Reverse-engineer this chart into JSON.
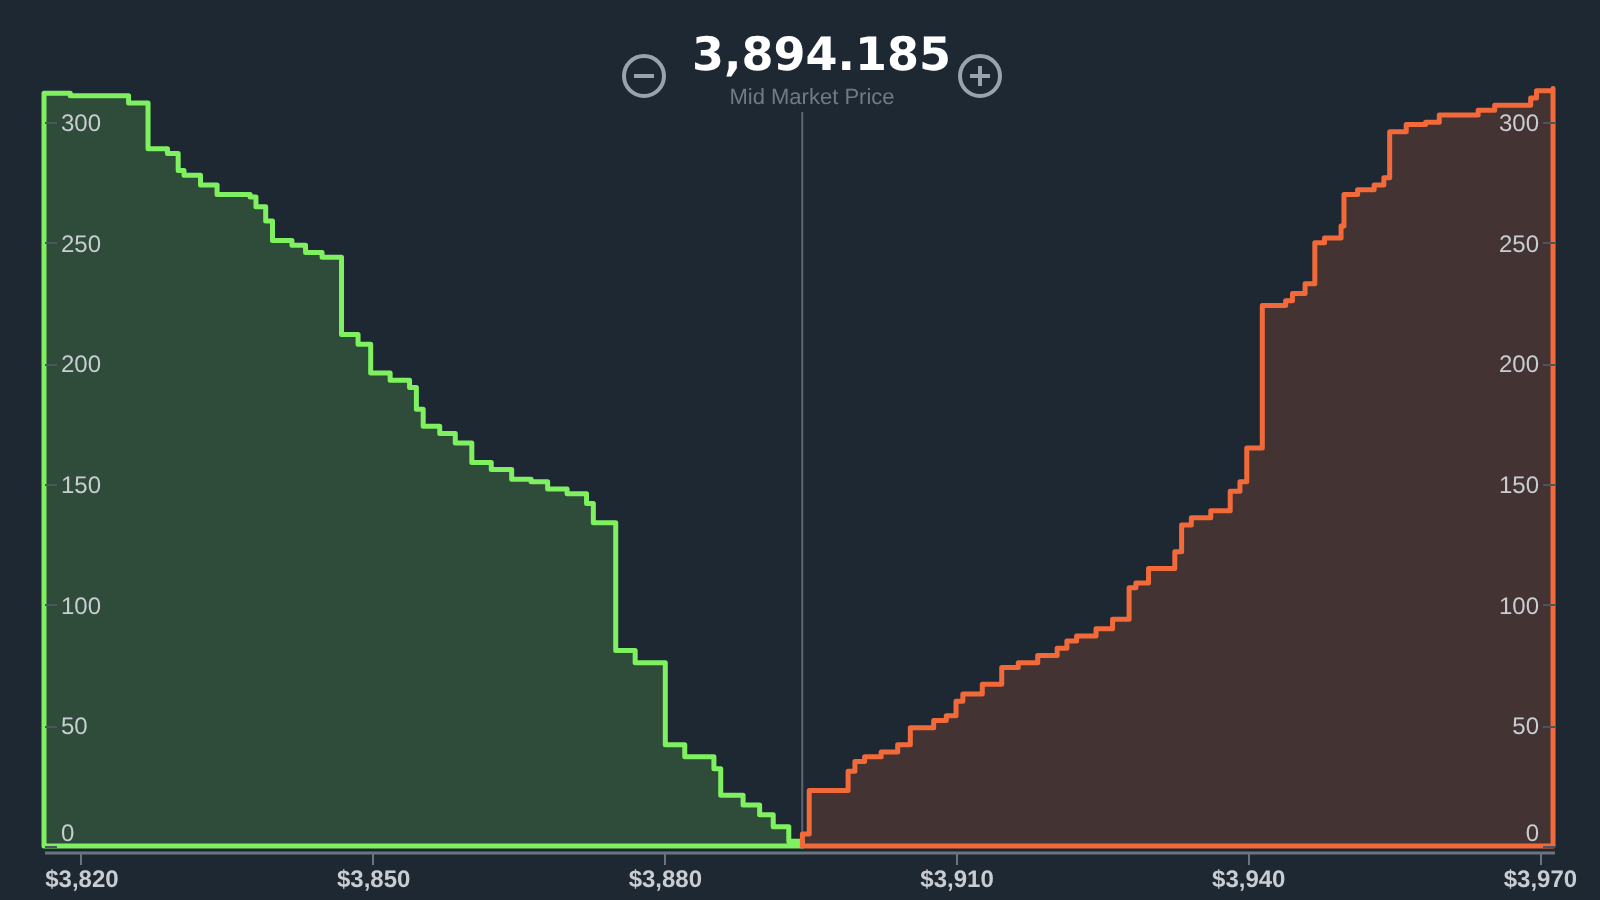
{
  "chart_data": {
    "type": "area",
    "title": "3,894.185",
    "subtitle": "Mid Market Price",
    "xlim": [
      3816.2,
      3971.5
    ],
    "xticks": [
      {
        "value": 3820,
        "label": "$3,820"
      },
      {
        "value": 3850,
        "label": "$3,850"
      },
      {
        "value": 3880,
        "label": "$3,880"
      },
      {
        "value": 3910,
        "label": "$3,910"
      },
      {
        "value": 3940,
        "label": "$3,940"
      },
      {
        "value": 3970,
        "label": "$3,970"
      }
    ],
    "ylim": [
      0,
      315
    ],
    "yticks": [
      0,
      50,
      100,
      150,
      200,
      250,
      300
    ],
    "y2lim": [
      0,
      315
    ],
    "y2ticks": [
      0,
      50,
      100,
      150,
      200,
      250,
      300
    ],
    "grid": false,
    "ref_lines": [
      {
        "axis": "x",
        "value": 3894.185,
        "color": "#5b6670"
      }
    ],
    "series": [
      {
        "color": "#7ff160",
        "x": [
          3816.2,
          3818.9,
          3824.9,
          3826.9,
          3828.9,
          3830.0,
          3830.6,
          3832.3,
          3834.0,
          3837.4,
          3838.0,
          3839.0,
          3839.7,
          3841.7,
          3843.1,
          3844.8,
          3846.8,
          3848.5,
          3849.8,
          3851.8,
          3853.8,
          3854.5,
          3855.2,
          3856.9,
          3858.5,
          3860.2,
          3862.2,
          3864.3,
          3866.3,
          3868.0,
          3870.0,
          3872.0,
          3872.7,
          3875.0,
          3877.0,
          3880.1,
          3882.1,
          3885.1,
          3885.8,
          3888.1,
          3889.8,
          3891.2,
          3892.8,
          3894.2
        ],
        "values": [
          312,
          311,
          308,
          289,
          287,
          280,
          278,
          274,
          270,
          269,
          265,
          259,
          251,
          249,
          246,
          244,
          212,
          208,
          196,
          193,
          190,
          181,
          174,
          171,
          167,
          159,
          156,
          152,
          151,
          148,
          146,
          142,
          134,
          81,
          76,
          42,
          37,
          32,
          21,
          17,
          13,
          8,
          2,
          0
        ]
      },
      {
        "color": "#f26a3a",
        "x": [
          3894.2,
          3894.9,
          3898.9,
          3899.6,
          3900.6,
          3902.3,
          3904.0,
          3905.3,
          3907.7,
          3909.0,
          3910.0,
          3910.7,
          3912.7,
          3914.7,
          3916.4,
          3918.4,
          3920.4,
          3921.4,
          3922.4,
          3924.4,
          3926.1,
          3927.8,
          3928.5,
          3929.8,
          3932.5,
          3933.2,
          3934.2,
          3936.2,
          3938.2,
          3939.2,
          3939.9,
          3941.5,
          3943.9,
          3944.6,
          3945.9,
          3946.9,
          3947.9,
          3949.6,
          3949.9,
          3951.3,
          3953.0,
          3954.0,
          3954.6,
          3956.3,
          3958.3,
          3959.7,
          3963.7,
          3965.4,
          3969.1,
          3969.7,
          3971.4
        ],
        "values": [
          5,
          23,
          31,
          35,
          37,
          39,
          42,
          49,
          52,
          54,
          60,
          63,
          67,
          74,
          76,
          79,
          82,
          85,
          87,
          90,
          94,
          107,
          109,
          115,
          122,
          133,
          136,
          139,
          147,
          151,
          165,
          224,
          226,
          229,
          233,
          250,
          252,
          257,
          270,
          272,
          274,
          277,
          296,
          299,
          300,
          303,
          305,
          307,
          310,
          313,
          314
        ]
      }
    ]
  }
}
